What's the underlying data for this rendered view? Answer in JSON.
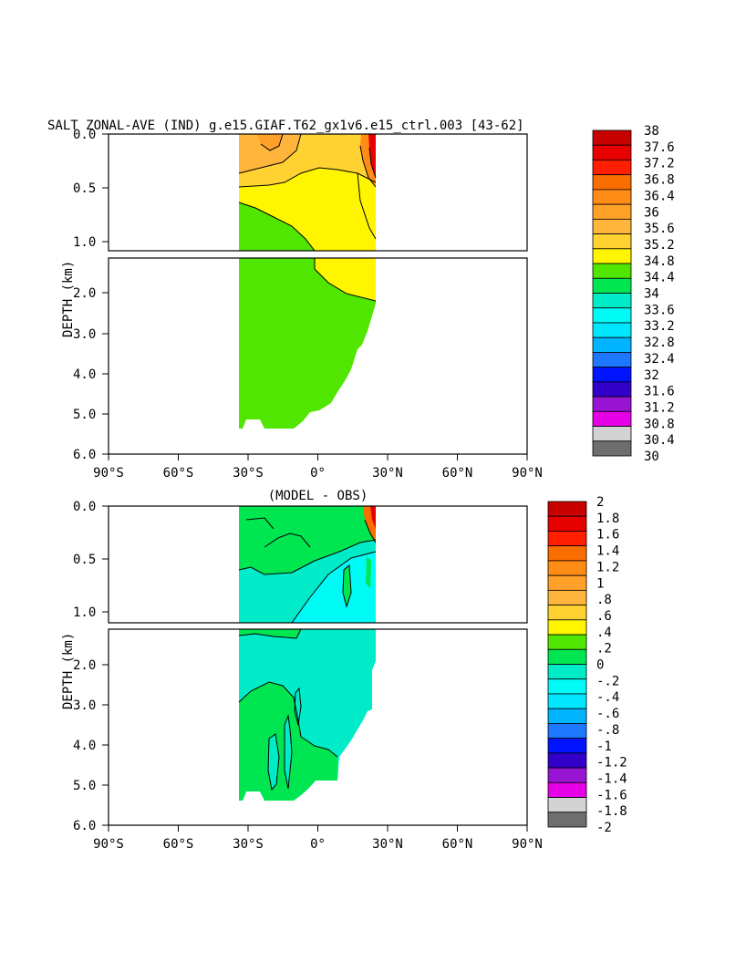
{
  "chart_data": [
    {
      "type": "heatmap",
      "title": "SALT ZONAL-AVE (IND) g.e15.GIAF.T62_gx1v6.e15_ctrl.003 [43-62]",
      "ylabel": "DEPTH (km)",
      "xlabel": "",
      "xticks": [
        "90°S",
        "60°S",
        "30°S",
        "0°",
        "30°N",
        "60°N",
        "90°N"
      ],
      "yticks_upper": [
        "0.0",
        "0.5",
        "1.0"
      ],
      "yticks_lower": [
        "2.0",
        "3.0",
        "4.0",
        "5.0",
        "6.0"
      ],
      "xlim": [
        -90,
        90
      ],
      "ylim": [
        6.0,
        0.0
      ],
      "colorbar_levels": [
        "38",
        "37.6",
        "37.2",
        "36.8",
        "36.4",
        "36",
        "35.6",
        "35.2",
        "34.8",
        "34.4",
        "34",
        "33.6",
        "33.2",
        "32.8",
        "32.4",
        "32",
        "31.6",
        "31.2",
        "30.8",
        "30.4",
        "30"
      ],
      "colors": [
        "#c80000",
        "#e60000",
        "#ff1e00",
        "#fa6e00",
        "#ff8c14",
        "#ffa028",
        "#ffb43c",
        "#ffd232",
        "#fff500",
        "#50e600",
        "#00e650",
        "#00ebc8",
        "#00faf5",
        "#00e6ff",
        "#00b4ff",
        "#1e78ff",
        "#0014ff",
        "#3200c8",
        "#9614d2",
        "#e600e6",
        "#d2d2d2",
        "#6e6e6e"
      ],
      "colors_note": "",
      "regions": [
        {
          "value_range": "34.4-34.8",
          "color": "#50e600",
          "area": "deep water"
        },
        {
          "value_range": "34.8-35.2",
          "color": "#fff500",
          "area": "upper thermocline"
        },
        {
          "value_range": "35.2-35.6",
          "color": "#ffd232",
          "area": "subtropical surface / northern upper"
        },
        {
          "value_range": "35.6-36.0",
          "color": "#ffb43c",
          "area": "southern surface"
        },
        {
          "value_range": "36.0-38.0",
          "color": "#e60000",
          "area": "northern marginal seas"
        }
      ]
    },
    {
      "type": "heatmap",
      "title": "(MODEL - OBS)",
      "ylabel": "DEPTH (km)",
      "xlabel": "",
      "xticks": [
        "90°S",
        "60°S",
        "30°S",
        "0°",
        "30°N",
        "60°N",
        "90°N"
      ],
      "yticks_upper": [
        "0.0",
        "0.5",
        "1.0"
      ],
      "yticks_lower": [
        "2.0",
        "3.0",
        "4.0",
        "5.0",
        "6.0"
      ],
      "xlim": [
        -90,
        90
      ],
      "ylim": [
        6.0,
        0.0
      ],
      "colorbar_levels": [
        "2",
        "1.8",
        "1.6",
        "1.4",
        "1.2",
        "1",
        ".8",
        ".6",
        ".4",
        ".2",
        "0",
        "-.2",
        "-.4",
        "-.6",
        "-.8",
        "-1",
        "-1.2",
        "-1.4",
        "-1.6",
        "-1.8",
        "-2"
      ],
      "colors": [
        "#c80000",
        "#e60000",
        "#ff1e00",
        "#fa6e00",
        "#ff8c14",
        "#ffa028",
        "#ffb43c",
        "#ffd232",
        "#fff500",
        "#50e600",
        "#00e650",
        "#00ebc8",
        "#00faf5",
        "#00e6ff",
        "#00b4ff",
        "#1e78ff",
        "#0014ff",
        "#3200c8",
        "#9614d2",
        "#e600e6",
        "#d2d2d2",
        "#6e6e6e"
      ],
      "regions": [
        {
          "value_range": "0-0.2",
          "color": "#00e650",
          "area": "upper and southern deep"
        },
        {
          "value_range": "-0.2-0",
          "color": "#00ebc8",
          "area": "intermediate and deep north"
        },
        {
          "value_range": ">0.4",
          "color": "#ff1e00",
          "area": "northern surface"
        }
      ]
    }
  ]
}
